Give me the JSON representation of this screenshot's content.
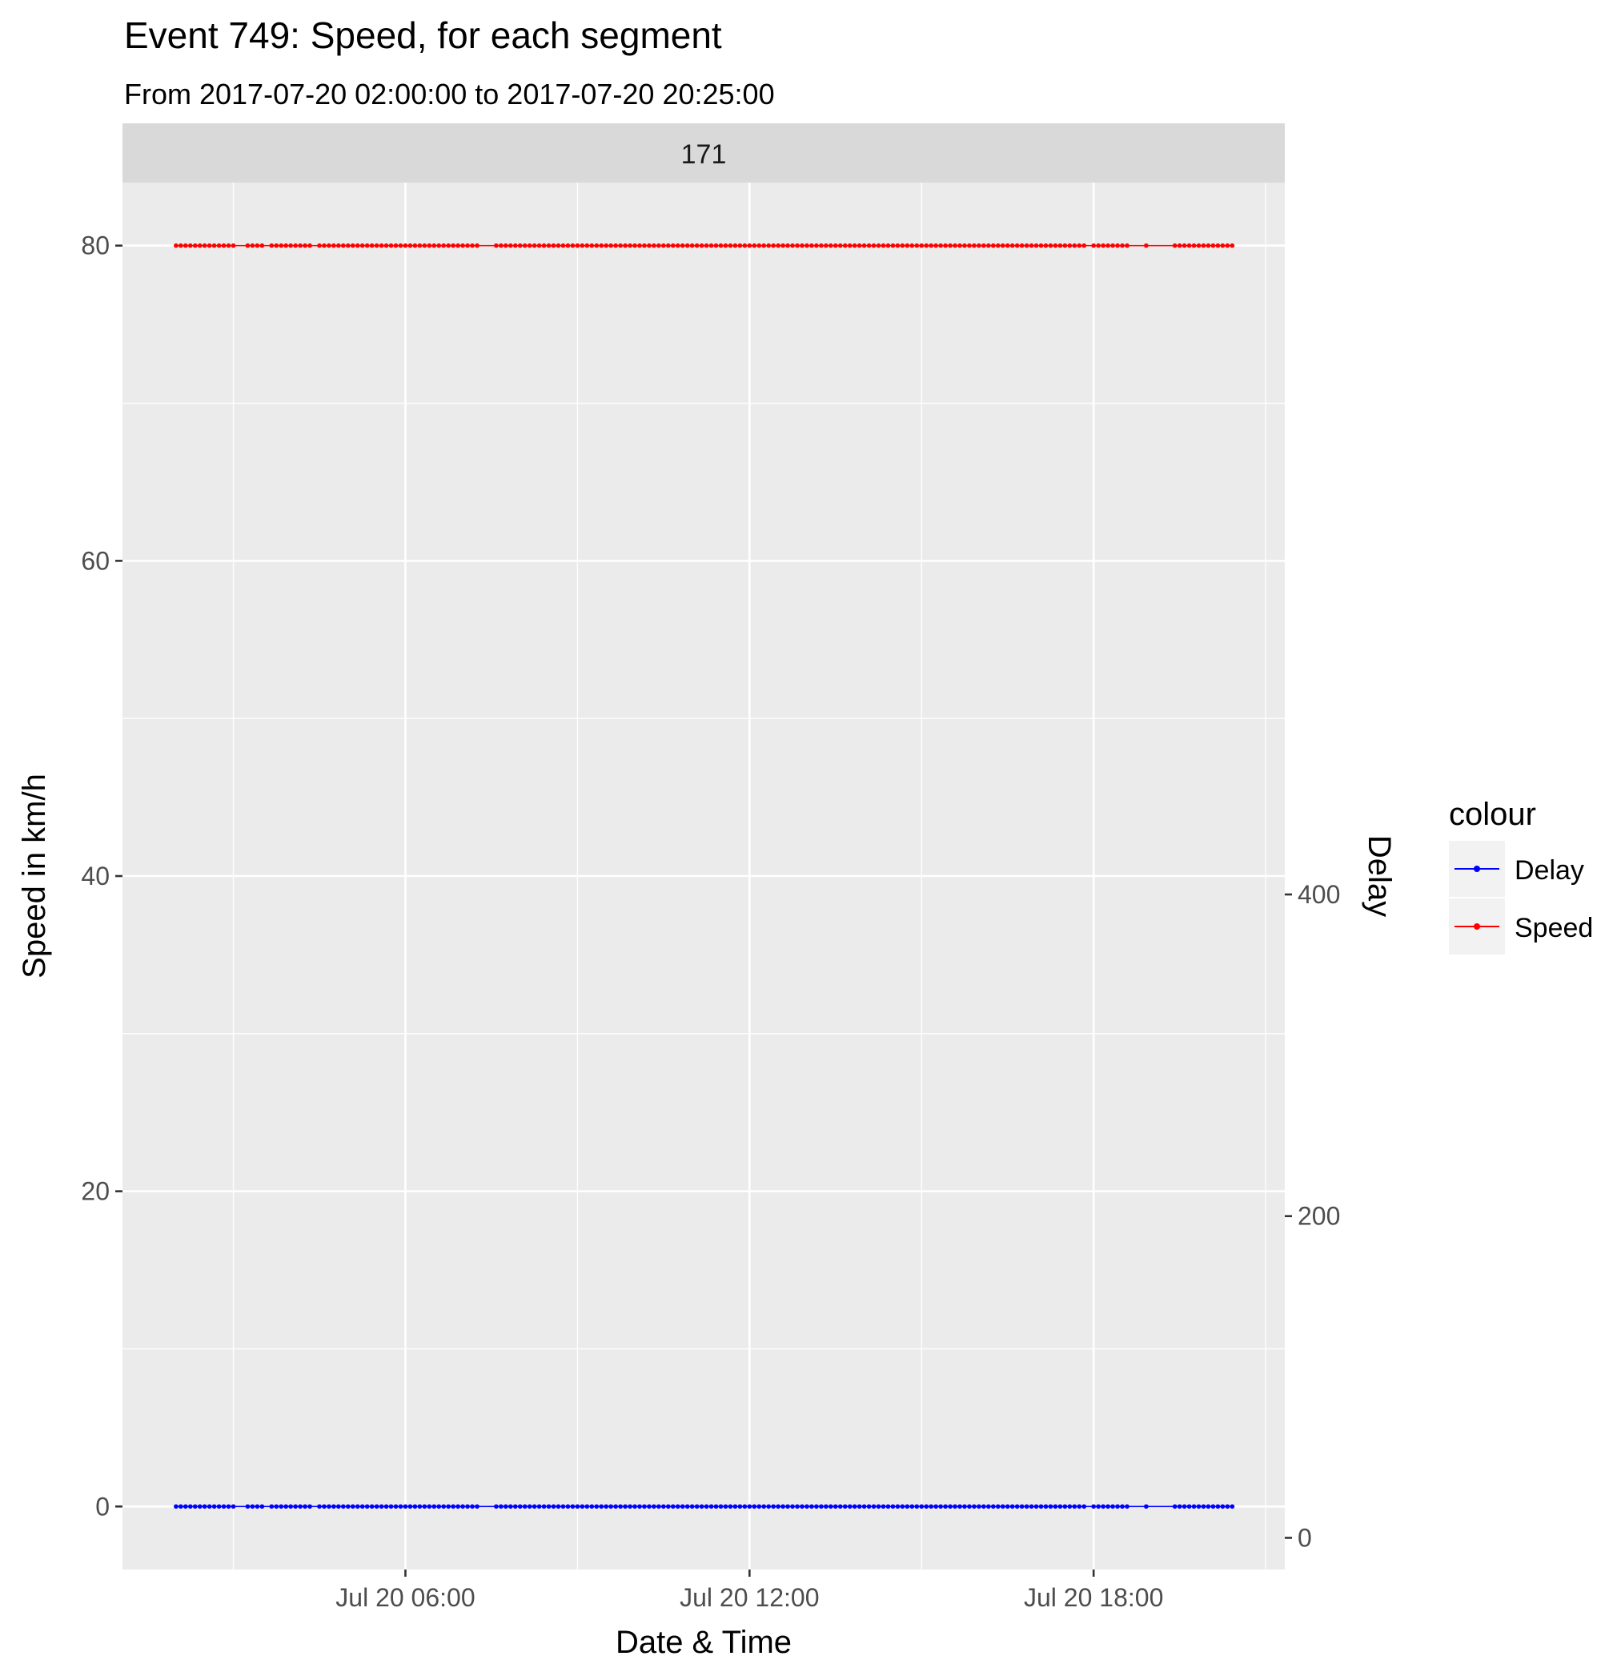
{
  "title": "Event 749: Speed, for each segment",
  "subtitle": "From 2017-07-20 02:00:00 to 2017-07-20 20:25:00",
  "facet_label": "171",
  "chart_data": {
    "type": "line",
    "title": "Event 749: Speed, for each segment",
    "subtitle": "From 2017-07-20 02:00:00 to 2017-07-20 20:25:00",
    "facet": "171",
    "xlabel": "Date & Time",
    "ylabel": "Speed in km/h",
    "y2label": "Delay",
    "x_ticks": [
      "Jul 20 06:00",
      "Jul 20 12:00",
      "Jul 20 18:00"
    ],
    "x_range": [
      "2017-07-20 01:04",
      "2017-07-20 21:20"
    ],
    "y_ticks": [
      "0",
      "20",
      "40",
      "60",
      "80"
    ],
    "ylim": [
      -4,
      84
    ],
    "y2_ticks": [
      "0",
      "200",
      "400"
    ],
    "grid": true,
    "legend_position": "right",
    "legend_title": "colour",
    "x_start": "2017-07-20 02:00",
    "x_end": "2017-07-20 20:25",
    "interval_minutes": 5,
    "gaps": [
      [
        "2017-07-20 02:10",
        "2017-07-20 02:15"
      ],
      [
        "2017-07-20 03:00",
        "2017-07-20 03:15"
      ],
      [
        "2017-07-20 03:30",
        "2017-07-20 03:40"
      ],
      [
        "2017-07-20 04:20",
        "2017-07-20 04:30"
      ],
      [
        "2017-07-20 07:15",
        "2017-07-20 07:35"
      ],
      [
        "2017-07-20 17:50",
        "2017-07-20 18:00"
      ],
      [
        "2017-07-20 18:35",
        "2017-07-20 18:55"
      ],
      [
        "2017-07-20 18:55",
        "2017-07-20 19:25"
      ]
    ],
    "series": [
      {
        "name": "Delay",
        "color": "#0000ff",
        "value": 0
      },
      {
        "name": "Speed",
        "color": "#ff0000",
        "value": 80
      }
    ]
  },
  "legend": {
    "title": "colour",
    "items": [
      {
        "label": "Delay",
        "color": "#0000ff"
      },
      {
        "label": "Speed",
        "color": "#ff0000"
      }
    ]
  }
}
